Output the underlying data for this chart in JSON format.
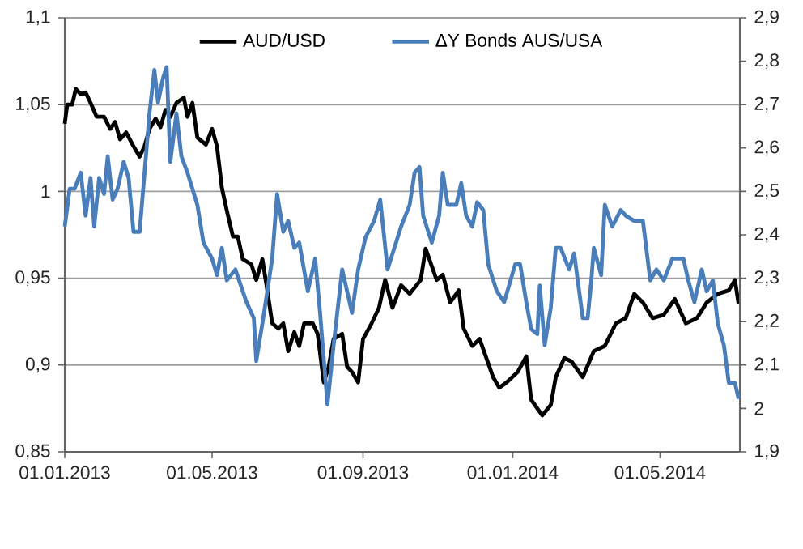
{
  "chart_data": {
    "type": "line",
    "xlim": [
      "2013-01-01",
      "2014-07-05"
    ],
    "xticks": [
      {
        "value": "2013-01-01",
        "label": "01.01.2013"
      },
      {
        "value": "2013-05-01",
        "label": "01.05.2013"
      },
      {
        "value": "2013-09-01",
        "label": "01.09.2013"
      },
      {
        "value": "2014-01-01",
        "label": "01.01.2014"
      },
      {
        "value": "2014-05-01",
        "label": "01.05.2014"
      }
    ],
    "ylim": [
      0.85,
      1.1
    ],
    "yticks": [
      {
        "value": 0.85,
        "label": "0,85"
      },
      {
        "value": 0.9,
        "label": "0,9"
      },
      {
        "value": 0.95,
        "label": "0,95"
      },
      {
        "value": 1,
        "label": "1"
      },
      {
        "value": 1.05,
        "label": "1,05"
      },
      {
        "value": 1.1,
        "label": "1,1"
      }
    ],
    "y2lim": [
      1.9,
      2.9
    ],
    "y2ticks": [
      {
        "value": 1.9,
        "label": "1,9"
      },
      {
        "value": 2,
        "label": "2"
      },
      {
        "value": 2.1,
        "label": "2,1"
      },
      {
        "value": 2.2,
        "label": "2,2"
      },
      {
        "value": 2.3,
        "label": "2,3"
      },
      {
        "value": 2.4,
        "label": "2,4"
      },
      {
        "value": 2.5,
        "label": "2,5"
      },
      {
        "value": 2.6,
        "label": "2,6"
      },
      {
        "value": 2.7,
        "label": "2,7"
      },
      {
        "value": 2.8,
        "label": "2,8"
      },
      {
        "value": 2.9,
        "label": "2,9"
      }
    ],
    "grid": "y",
    "legend": "top",
    "marker": "none",
    "line_style": "solid",
    "series": [
      {
        "name": "AUD/USD",
        "color": "#000000",
        "x": [
          "2013-01-01",
          "2013-01-03",
          "2013-01-07",
          "2013-01-10",
          "2013-01-14",
          "2013-01-18",
          "2013-01-22",
          "2013-01-27",
          "2013-02-02",
          "2013-02-07",
          "2013-02-11",
          "2013-02-15",
          "2013-02-20",
          "2013-02-26",
          "2013-03-03",
          "2013-03-07",
          "2013-03-11",
          "2013-03-16",
          "2013-03-20",
          "2013-03-24",
          "2013-03-28",
          "2013-04-02",
          "2013-04-08",
          "2013-04-11",
          "2013-04-15",
          "2013-04-19",
          "2013-04-26",
          "2013-05-01",
          "2013-05-05",
          "2013-05-09",
          "2013-05-13",
          "2013-05-18",
          "2013-05-22",
          "2013-05-26",
          "2013-06-02",
          "2013-06-06",
          "2013-06-11",
          "2013-06-15",
          "2013-06-19",
          "2013-06-24",
          "2013-06-28",
          "2013-07-02",
          "2013-07-07",
          "2013-07-11",
          "2013-07-15",
          "2013-07-22",
          "2013-07-26",
          "2013-07-31",
          "2013-08-04",
          "2013-08-08",
          "2013-08-15",
          "2013-08-19",
          "2013-08-23",
          "2013-08-28",
          "2013-09-01",
          "2013-09-08",
          "2013-09-14",
          "2013-09-19",
          "2013-09-25",
          "2013-10-02",
          "2013-10-09",
          "2013-10-18",
          "2013-10-22",
          "2013-10-31",
          "2013-11-05",
          "2013-11-11",
          "2013-11-18",
          "2013-11-22",
          "2013-11-29",
          "2013-12-05",
          "2013-12-10",
          "2013-12-16",
          "2013-12-21",
          "2013-12-27",
          "2014-01-05",
          "2014-01-12",
          "2014-01-16",
          "2014-01-25",
          "2014-02-01",
          "2014-02-05",
          "2014-02-12",
          "2014-02-18",
          "2014-02-27",
          "2014-03-08",
          "2014-03-17",
          "2014-03-26",
          "2014-04-03",
          "2014-04-10",
          "2014-04-17",
          "2014-04-25",
          "2014-05-04",
          "2014-05-13",
          "2014-05-22",
          "2014-05-31",
          "2014-06-08",
          "2014-06-17",
          "2014-06-26",
          "2014-07-01",
          "2014-07-04"
        ],
        "values": [
          1.039,
          1.05,
          1.05,
          1.059,
          1.056,
          1.057,
          1.051,
          1.043,
          1.043,
          1.036,
          1.04,
          1.03,
          1.034,
          1.026,
          1.02,
          1.026,
          1.036,
          1.042,
          1.037,
          1.047,
          1.043,
          1.051,
          1.054,
          1.043,
          1.051,
          1.031,
          1.027,
          1.036,
          1.026,
          1.002,
          0.989,
          0.974,
          0.974,
          0.961,
          0.958,
          0.949,
          0.961,
          0.943,
          0.924,
          0.921,
          0.924,
          0.908,
          0.919,
          0.911,
          0.924,
          0.924,
          0.918,
          0.89,
          0.899,
          0.915,
          0.918,
          0.899,
          0.896,
          0.89,
          0.915,
          0.924,
          0.933,
          0.949,
          0.933,
          0.946,
          0.941,
          0.949,
          0.967,
          0.949,
          0.952,
          0.936,
          0.943,
          0.921,
          0.911,
          0.915,
          0.905,
          0.893,
          0.887,
          0.89,
          0.896,
          0.905,
          0.88,
          0.871,
          0.877,
          0.893,
          0.904,
          0.902,
          0.893,
          0.908,
          0.911,
          0.924,
          0.927,
          0.941,
          0.936,
          0.927,
          0.929,
          0.938,
          0.924,
          0.927,
          0.936,
          0.941,
          0.943,
          0.949,
          0.935
        ]
      },
      {
        "name": "ΔY Bonds AUS/USA",
        "color": "#4a7ebb",
        "axis": "y2",
        "x": [
          "2013-01-01",
          "2013-01-05",
          "2013-01-09",
          "2013-01-14",
          "2013-01-18",
          "2013-01-22",
          "2013-01-25",
          "2013-01-29",
          "2013-02-02",
          "2013-02-05",
          "2013-02-09",
          "2013-02-13",
          "2013-02-18",
          "2013-02-22",
          "2013-02-26",
          "2013-03-03",
          "2013-03-07",
          "2013-03-11",
          "2013-03-15",
          "2013-03-18",
          "2013-03-22",
          "2013-03-25",
          "2013-03-28",
          "2013-04-02",
          "2013-04-06",
          "2013-04-11",
          "2013-04-15",
          "2013-04-19",
          "2013-04-24",
          "2013-05-01",
          "2013-05-05",
          "2013-05-09",
          "2013-05-13",
          "2013-05-20",
          "2013-05-29",
          "2013-06-04",
          "2013-06-06",
          "2013-06-11",
          "2013-06-15",
          "2013-06-19",
          "2013-06-23",
          "2013-06-28",
          "2013-07-02",
          "2013-07-07",
          "2013-07-11",
          "2013-07-18",
          "2013-07-24",
          "2013-07-28",
          "2013-08-03",
          "2013-08-08",
          "2013-08-15",
          "2013-08-19",
          "2013-08-23",
          "2013-08-28",
          "2013-09-03",
          "2013-09-10",
          "2013-09-15",
          "2013-09-21",
          "2013-10-02",
          "2013-10-09",
          "2013-10-13",
          "2013-10-17",
          "2013-10-20",
          "2013-10-27",
          "2013-11-02",
          "2013-11-05",
          "2013-11-09",
          "2013-11-16",
          "2013-11-20",
          "2013-11-24",
          "2013-11-29",
          "2013-12-03",
          "2013-12-08",
          "2013-12-12",
          "2013-12-19",
          "2013-12-25",
          "2014-01-03",
          "2014-01-07",
          "2014-01-12",
          "2014-01-16",
          "2014-01-21",
          "2014-01-23",
          "2014-01-27",
          "2014-02-01",
          "2014-02-05",
          "2014-02-09",
          "2014-02-16",
          "2014-02-20",
          "2014-02-27",
          "2014-03-03",
          "2014-03-06",
          "2014-03-08",
          "2014-03-14",
          "2014-03-17",
          "2014-03-23",
          "2014-03-30",
          "2014-04-03",
          "2014-04-10",
          "2014-04-17",
          "2014-04-23",
          "2014-04-28",
          "2014-05-04",
          "2014-05-11",
          "2014-05-20",
          "2014-05-24",
          "2014-05-29",
          "2014-06-04",
          "2014-06-08",
          "2014-06-13",
          "2014-06-17",
          "2014-06-22",
          "2014-06-26",
          "2014-07-01",
          "2014-07-04"
        ],
        "values": [
          2.419,
          2.506,
          2.506,
          2.543,
          2.444,
          2.531,
          2.419,
          2.531,
          2.494,
          2.581,
          2.481,
          2.506,
          2.568,
          2.531,
          2.407,
          2.407,
          2.543,
          2.68,
          2.78,
          2.705,
          2.761,
          2.786,
          2.568,
          2.68,
          2.581,
          2.543,
          2.506,
          2.469,
          2.382,
          2.345,
          2.307,
          2.37,
          2.295,
          2.32,
          2.245,
          2.208,
          2.109,
          2.196,
          2.27,
          2.345,
          2.494,
          2.407,
          2.432,
          2.37,
          2.382,
          2.27,
          2.345,
          2.22,
          2.009,
          2.146,
          2.32,
          2.27,
          2.22,
          2.32,
          2.394,
          2.432,
          2.481,
          2.32,
          2.419,
          2.469,
          2.543,
          2.556,
          2.444,
          2.382,
          2.444,
          2.543,
          2.469,
          2.469,
          2.519,
          2.444,
          2.419,
          2.475,
          2.457,
          2.332,
          2.27,
          2.245,
          2.332,
          2.332,
          2.245,
          2.183,
          2.171,
          2.283,
          2.146,
          2.233,
          2.37,
          2.37,
          2.32,
          2.357,
          2.208,
          2.208,
          2.295,
          2.37,
          2.307,
          2.469,
          2.419,
          2.457,
          2.444,
          2.432,
          2.432,
          2.295,
          2.32,
          2.295,
          2.345,
          2.345,
          2.295,
          2.245,
          2.32,
          2.27,
          2.295,
          2.196,
          2.146,
          2.059,
          2.059,
          2.022
        ]
      }
    ]
  }
}
